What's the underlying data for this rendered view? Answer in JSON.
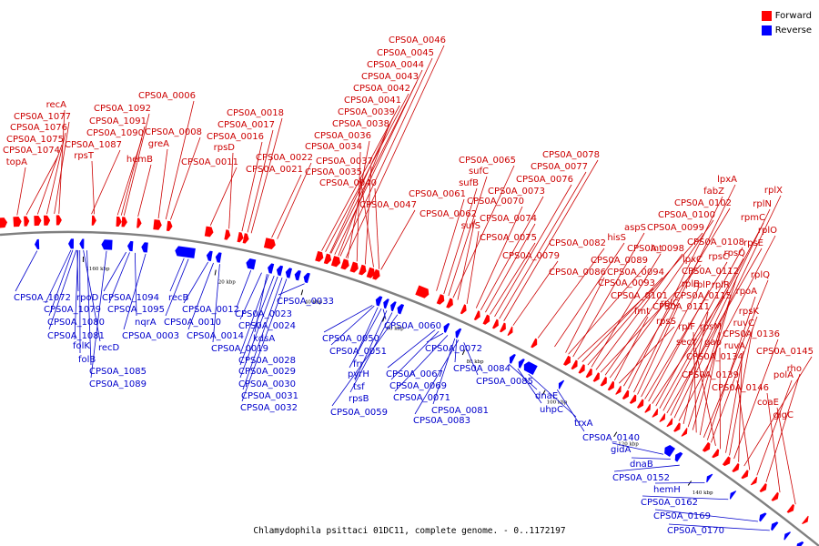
{
  "legend": {
    "items": [
      {
        "label": "Forward",
        "color": "#ff0000"
      },
      {
        "label": "Reverse",
        "color": "#0000ff"
      }
    ]
  },
  "caption": "Chlamydophila psittaci 01DC11, complete genome. - 0..1172197",
  "colors": {
    "forward": "#ff0000",
    "reverse": "#0000ff",
    "backbone": "#808080",
    "label_forward": "#cc0000",
    "label_reverse": "#0000cc"
  },
  "ticks": [
    "1160 kbp",
    "20 kbp",
    "40 kbp",
    "60 kbp",
    "80 kbp",
    "100 kbp",
    "120 kbp",
    "140 kbp"
  ],
  "forward_labels": [
    "topA",
    "CPS0A_1074",
    "CPS0A_1075",
    "CPS0A_1076",
    "CPS0A_1077",
    "recA",
    "CPS0A_1087",
    "rpsT",
    "CPS0A_1090",
    "CPS0A_1091",
    "CPS0A_1092",
    "hemB",
    "greA",
    "CPS0A_0008",
    "CPS0A_0006",
    "CPS0A_0011",
    "rpsD",
    "CPS0A_0016",
    "CPS0A_0017",
    "CPS0A_0018",
    "CPS0A_0021",
    "CPS0A_0022",
    "CPS0A_0040",
    "CPS0A_0035",
    "CPS0A_0037",
    "CPS0A_0034",
    "CPS0A_0036",
    "CPS0A_0038",
    "CPS0A_0039",
    "CPS0A_0041",
    "CPS0A_0042",
    "CPS0A_0043",
    "CPS0A_0044",
    "CPS0A_0045",
    "CPS0A_0046",
    "CPS0A_0047",
    "CPS0A_0061",
    "sufB",
    "sufC",
    "CPS0A_0065",
    "CPS0A_0062",
    "sufS",
    "CPS0A_0070",
    "CPS0A_0073",
    "CPS0A_0074",
    "CPS0A_0075",
    "CPS0A_0076",
    "CPS0A_0077",
    "CPS0A_0078",
    "CPS0A_0079",
    "CPS0A_0082",
    "hisS",
    "CPS0A_0086",
    "CPS0A_0089",
    "aspS",
    "CPS0A_0093",
    "CPS0A_0094",
    "CPS0A_0099",
    "lnt",
    "CPS0A_0098",
    "lpxC",
    "CPS0A_0100",
    "CPS0A_0101",
    "fmt",
    "rpsS",
    "CPS0A_0102",
    "fabZ",
    "lpxA",
    "rplC",
    "rplB",
    "rpsC",
    "rplP",
    "rplR",
    "CPS0A_0108",
    "rpsQ",
    "rpmC",
    "rpsE",
    "rplN",
    "rplX",
    "rplO",
    "CPS0A_0111",
    "CPS0A_0112",
    "CPS0A_0115",
    "rplF",
    "rpsM",
    "rplQ",
    "rpoA",
    "rpsK",
    "secY",
    "gap",
    "ruvA",
    "ruvC",
    "CPS0A_0136",
    "CPS0A_0134",
    "CPS0A_0145",
    "CPS0A_0139",
    "polA",
    "rho",
    "CPS0A_0146",
    "coaE",
    "glgC"
  ],
  "reverse_labels": [
    "CPS0A_1072",
    "CPS0A_1079",
    "rpoD",
    "CPS0A_1080",
    "CPS0A_1081",
    "folK",
    "folB",
    "recD",
    "CPS0A_1085",
    "CPS0A_1089",
    "CPS0A_1094",
    "CPS0A_1095",
    "nqrA",
    "CPS0A_0003",
    "recB",
    "CPS0A_0012",
    "CPS0A_0010",
    "CPS0A_0014",
    "CPS0A_0019",
    "CPS0A_0023",
    "CPS0A_0024",
    "kdsA",
    "CPS0A_0028",
    "CPS0A_0029",
    "CPS0A_0030",
    "CPS0A_0031",
    "CPS0A_0032",
    "CPS0A_0033",
    "CPS0A_0060",
    "CPS0A_0050",
    "CPS0A_0051",
    "frr",
    "pyrH",
    "tsf",
    "rpsB",
    "CPS0A_0059",
    "CPS0A_0072",
    "CPS0A_0067",
    "CPS0A_0069",
    "CPS0A_0071",
    "CPS0A_0084",
    "CPS0A_0085",
    "CPS0A_0081",
    "CPS0A_0083",
    "dnaE",
    "uhpC",
    "trxA",
    "CPS0A_0140",
    "gidA",
    "dnaB",
    "CPS0A_0152",
    "hemH",
    "CPS0A_0162",
    "CPS0A_0169",
    "CPS0A_0170"
  ]
}
